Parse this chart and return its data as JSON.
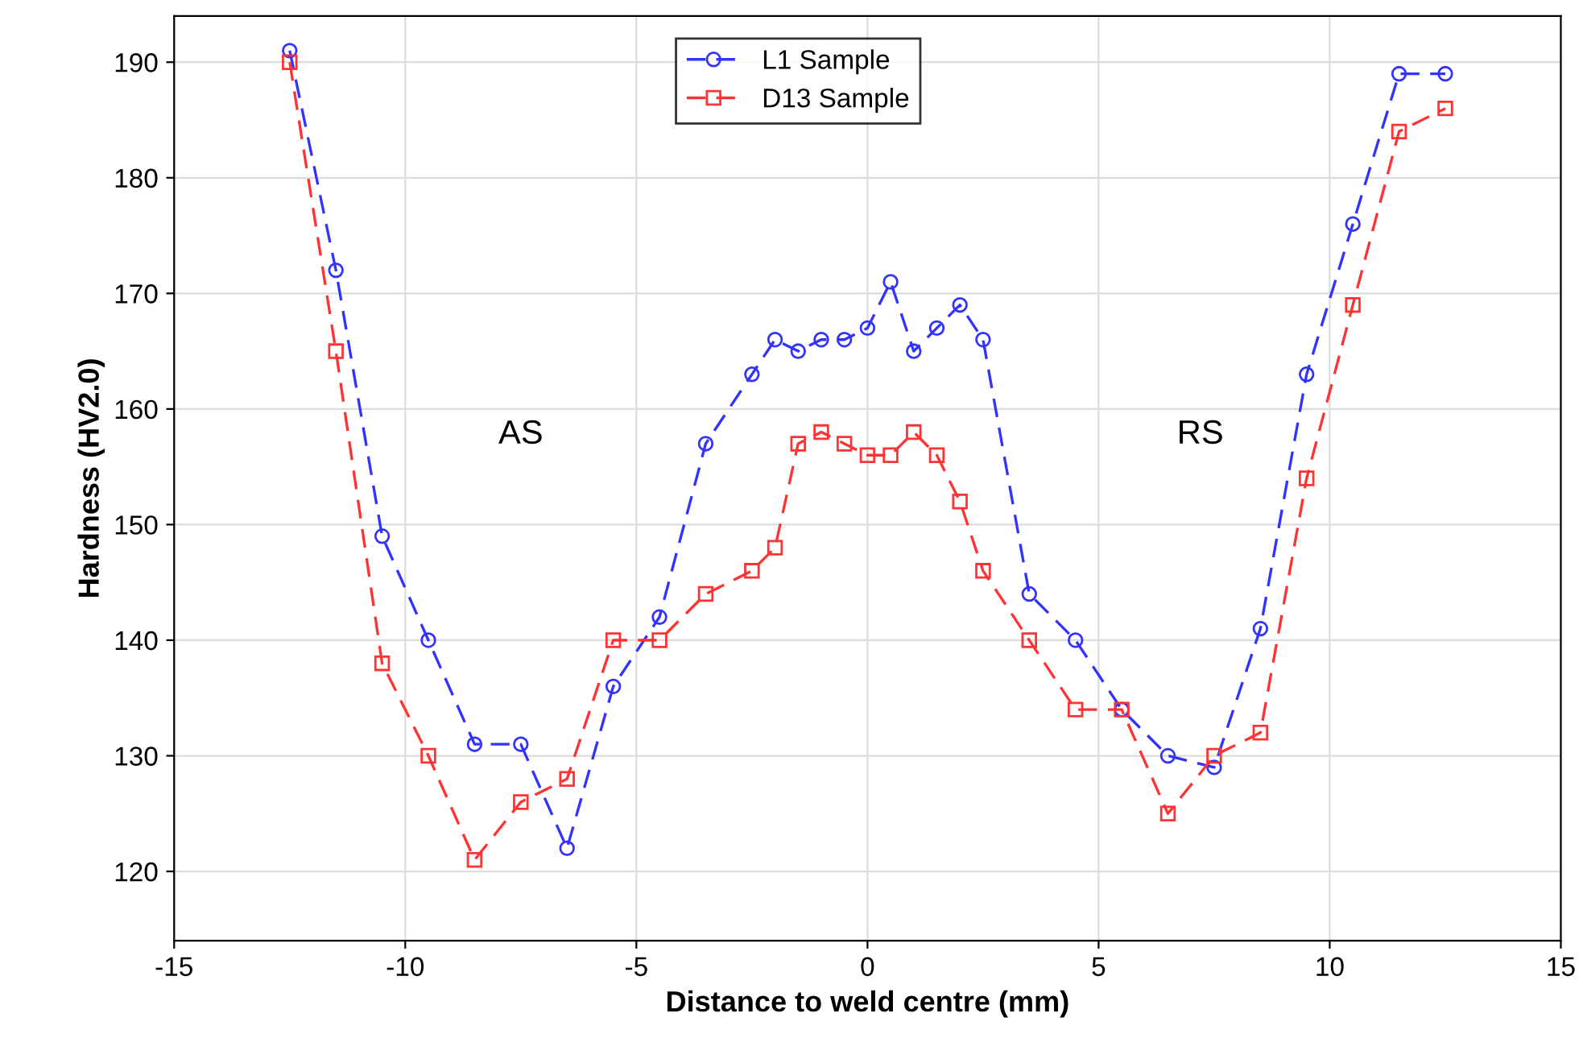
{
  "chart_data": {
    "type": "line",
    "xlabel": "Distance to weld centre (mm)",
    "ylabel": "Hardness (HV2.0)",
    "xlim": [
      -15,
      15
    ],
    "xticks": [
      -15,
      -10,
      -5,
      0,
      5,
      10,
      15
    ],
    "ylim": [
      114,
      194
    ],
    "yticks": [
      120,
      130,
      140,
      150,
      160,
      170,
      180,
      190
    ],
    "grid": true,
    "legend": "top",
    "line_style": "dashed",
    "series": [
      {
        "name": "L1 Sample",
        "color": "#3333ff",
        "marker": "circle",
        "x": [
          -12.5,
          -11.5,
          -10.5,
          -9.5,
          -8.5,
          -7.5,
          -6.5,
          -5.5,
          -4.5,
          -3.5,
          -2.5,
          -2,
          -1.5,
          -1,
          -0.5,
          0,
          0.5,
          1,
          1.5,
          2,
          2.5,
          3.5,
          4.5,
          5.5,
          6.5,
          7.5,
          8.5,
          9.5,
          10.5,
          11.5,
          12.5
        ],
        "values": [
          191,
          172,
          149,
          140,
          131,
          131,
          122,
          136,
          142,
          157,
          163,
          166,
          165,
          166,
          166,
          167,
          171,
          165,
          167,
          169,
          166,
          144,
          140,
          134,
          130,
          129,
          141,
          163,
          176,
          189,
          189
        ]
      },
      {
        "name": "D13 Sample",
        "color": "#ff3333",
        "marker": "square",
        "x": [
          -12.5,
          -11.5,
          -10.5,
          -9.5,
          -8.5,
          -7.5,
          -6.5,
          -5.5,
          -4.5,
          -3.5,
          -2.5,
          -2,
          -1.5,
          -1,
          -0.5,
          0,
          0.5,
          1,
          1.5,
          2,
          2.5,
          3.5,
          4.5,
          5.5,
          6.5,
          7.5,
          8.5,
          9.5,
          10.5,
          11.5,
          12.5
        ],
        "values": [
          190,
          165,
          138,
          130,
          121,
          126,
          128,
          140,
          140,
          144,
          146,
          148,
          157,
          158,
          157,
          156,
          156,
          158,
          156,
          152,
          146,
          140,
          134,
          134,
          125,
          130,
          132,
          154,
          169,
          184,
          186
        ]
      }
    ],
    "annotations": [
      "AS",
      "RS"
    ]
  }
}
